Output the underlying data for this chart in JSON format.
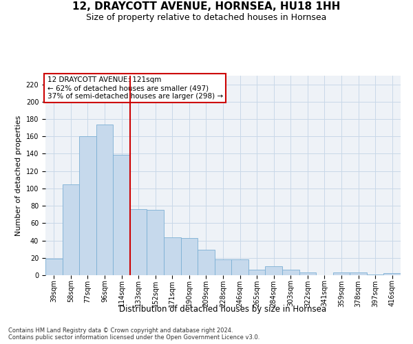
{
  "title": "12, DRAYCOTT AVENUE, HORNSEA, HU18 1HH",
  "subtitle": "Size of property relative to detached houses in Hornsea",
  "xlabel": "Distribution of detached houses by size in Hornsea",
  "ylabel": "Number of detached properties",
  "categories": [
    "39sqm",
    "58sqm",
    "77sqm",
    "96sqm",
    "114sqm",
    "133sqm",
    "152sqm",
    "171sqm",
    "190sqm",
    "209sqm",
    "228sqm",
    "246sqm",
    "265sqm",
    "284sqm",
    "303sqm",
    "322sqm",
    "341sqm",
    "359sqm",
    "378sqm",
    "397sqm",
    "416sqm"
  ],
  "values": [
    19,
    105,
    160,
    174,
    139,
    76,
    75,
    44,
    43,
    29,
    18,
    18,
    6,
    10,
    6,
    3,
    0,
    3,
    3,
    1,
    2
  ],
  "bar_color": "#c6d9ec",
  "bar_edge_color": "#7bafd4",
  "grid_color": "#c8d8e8",
  "background_color": "#eef2f7",
  "vline_x": 4.5,
  "vline_color": "#cc0000",
  "annotation_lines": [
    "12 DRAYCOTT AVENUE: 121sqm",
    "← 62% of detached houses are smaller (497)",
    "37% of semi-detached houses are larger (298) →"
  ],
  "annotation_box_color": "white",
  "annotation_box_edgecolor": "#cc0000",
  "ylim": [
    0,
    230
  ],
  "yticks": [
    0,
    20,
    40,
    60,
    80,
    100,
    120,
    140,
    160,
    180,
    200,
    220
  ],
  "footnote": "Contains HM Land Registry data © Crown copyright and database right 2024.\nContains public sector information licensed under the Open Government Licence v3.0.",
  "title_fontsize": 11,
  "subtitle_fontsize": 9,
  "xlabel_fontsize": 8.5,
  "ylabel_fontsize": 8,
  "tick_fontsize": 7,
  "annotation_fontsize": 7.5,
  "footnote_fontsize": 6
}
